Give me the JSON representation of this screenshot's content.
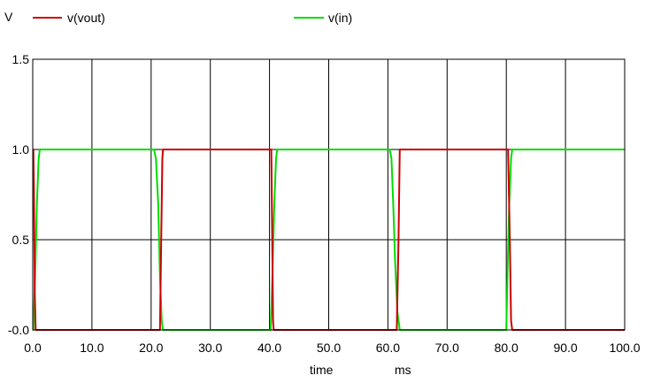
{
  "chart_data": {
    "type": "line",
    "ylabel": "V",
    "xlabel": "time",
    "xunit": "ms",
    "xlim": [
      0,
      100
    ],
    "ylim": [
      0,
      1.5
    ],
    "xticks": [
      0,
      10,
      20,
      30,
      40,
      50,
      60,
      70,
      80,
      90,
      100
    ],
    "xtick_labels": [
      "0.0",
      "10.0",
      "20.0",
      "30.0",
      "40.0",
      "50.0",
      "60.0",
      "70.0",
      "80.0",
      "90.0",
      "100.0"
    ],
    "yticks": [
      0,
      0.5,
      1.0,
      1.5
    ],
    "ytick_labels": [
      "-0.0",
      "0.5",
      "1.0",
      "1.5"
    ],
    "grid": true,
    "legend_placement": "top",
    "series": [
      {
        "name": "v(vout)",
        "color": "#cc0000",
        "x": [
          0,
          0.1,
          0.2,
          0.35,
          0.5,
          0.6,
          21.0,
          21.5,
          21.7,
          21.9,
          22.0,
          40.0,
          40.3,
          40.5,
          40.6,
          40.7,
          61.0,
          61.5,
          61.8,
          62.0,
          80.0,
          80.3,
          80.6,
          80.8,
          81.0,
          100
        ],
        "y": [
          1.0,
          1.0,
          0.8,
          0.2,
          0,
          0,
          0,
          0,
          0.5,
          0.95,
          1.0,
          1.0,
          1.0,
          0.4,
          0.05,
          0,
          0,
          0,
          0.5,
          1.0,
          1.0,
          1.0,
          0.5,
          0.05,
          0,
          0
        ]
      },
      {
        "name": "v(in)",
        "color": "#00dd00",
        "x": [
          0,
          0.1,
          0.4,
          0.7,
          1.0,
          1.2,
          20.3,
          20.5,
          20.8,
          21.2,
          21.5,
          21.8,
          22.0,
          40.0,
          40.2,
          40.5,
          40.8,
          41.1,
          41.3,
          60.3,
          60.6,
          60.9,
          61.2,
          61.6,
          62.0,
          80.0,
          80.2,
          80.5,
          80.8,
          81.0,
          100
        ],
        "y": [
          0,
          0,
          0.3,
          0.7,
          0.95,
          1.0,
          1.0,
          1.0,
          0.95,
          0.7,
          0.3,
          0.05,
          0,
          0,
          0,
          0.3,
          0.7,
          0.95,
          1.0,
          1.0,
          0.95,
          0.7,
          0.4,
          0.1,
          0,
          0,
          0.3,
          0.7,
          0.95,
          1.0,
          1.0
        ]
      }
    ]
  }
}
